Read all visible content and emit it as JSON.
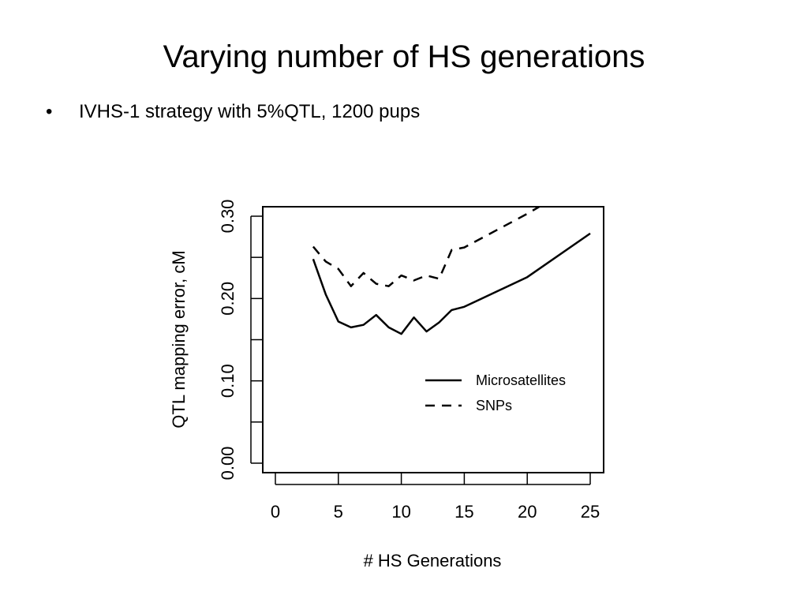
{
  "slide": {
    "title": "Varying number of HS generations",
    "bullets": [
      {
        "marker": "•",
        "text": "IVHS-1 strategy with 5%QTL, 1200 pups"
      }
    ]
  },
  "chart_data": {
    "type": "line",
    "title": "",
    "xlabel": "# HS Generations",
    "ylabel": "QTL mapping error, cM",
    "xlim": [
      0,
      26
    ],
    "ylim": [
      0,
      0.3
    ],
    "xticks": [
      0,
      5,
      10,
      15,
      20,
      25
    ],
    "xtick_labels": [
      "0",
      "5",
      "10",
      "15",
      "20",
      "25"
    ],
    "yticks": [
      0,
      0.05,
      0.1,
      0.15,
      0.2,
      0.25,
      0.3
    ],
    "ytick_labels": [
      "0.00",
      "",
      "0.10",
      "",
      "0.20",
      "",
      "0.30"
    ],
    "grid": false,
    "legend": "center-right",
    "series": [
      {
        "name": "Microsatellites",
        "style": "solid",
        "color": "#000000",
        "x": [
          3,
          4,
          5,
          6,
          7,
          8,
          9,
          10,
          11,
          12,
          13,
          14,
          15,
          20,
          25
        ],
        "y": [
          0.248,
          0.205,
          0.172,
          0.165,
          0.168,
          0.18,
          0.165,
          0.157,
          0.177,
          0.16,
          0.171,
          0.186,
          0.19,
          0.226,
          0.279
        ]
      },
      {
        "name": "SNPs",
        "style": "dashed",
        "color": "#000000",
        "x": [
          3,
          4,
          5,
          6,
          7,
          8,
          9,
          10,
          11,
          12,
          13,
          14,
          15,
          20,
          21
        ],
        "y": [
          0.263,
          0.245,
          0.236,
          0.215,
          0.231,
          0.218,
          0.215,
          0.228,
          0.222,
          0.228,
          0.224,
          0.259,
          0.262,
          0.303,
          0.312
        ]
      }
    ]
  }
}
